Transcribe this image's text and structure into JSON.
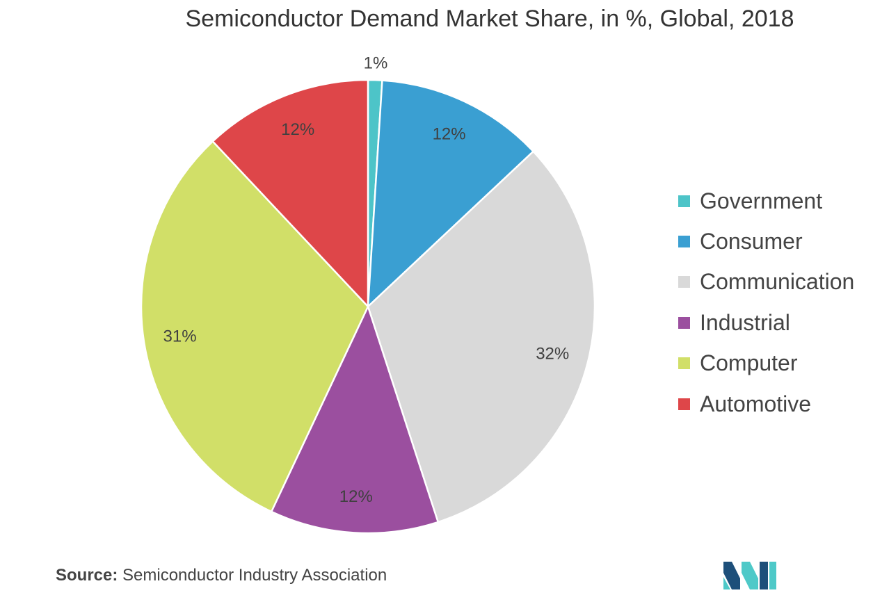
{
  "colors": {
    "government": "#4dc4c8",
    "consumer": "#3a9fd2",
    "communication": "#d9d9d9",
    "industrial": "#9b4f9f",
    "computer": "#d1df68",
    "automotive": "#de4649",
    "logo_dark": "#1d4f7a",
    "logo_light": "#4ec9c8"
  },
  "chart_data": {
    "type": "pie",
    "title": "Semiconductor Demand Market Share, in %, Global, 2018",
    "legend_position": "right",
    "start_angle_deg": 0,
    "direction": "clockwise",
    "slices": [
      {
        "name": "Government",
        "value": 1,
        "label": "1%",
        "color": "#4dc4c8"
      },
      {
        "name": "Consumer",
        "value": 12,
        "label": "12%",
        "color": "#3a9fd2"
      },
      {
        "name": "Communication",
        "value": 32,
        "label": "32%",
        "color": "#d9d9d9"
      },
      {
        "name": "Industrial",
        "value": 12,
        "label": "12%",
        "color": "#9b4f9f"
      },
      {
        "name": "Computer",
        "value": 31,
        "label": "31%",
        "color": "#d1df68"
      },
      {
        "name": "Automotive",
        "value": 12,
        "label": "12%",
        "color": "#de4649"
      }
    ]
  },
  "source": {
    "key": "Source:",
    "text": "Semiconductor Industry Association"
  },
  "logo": {
    "icon": "mordor-intelligence-logo"
  }
}
